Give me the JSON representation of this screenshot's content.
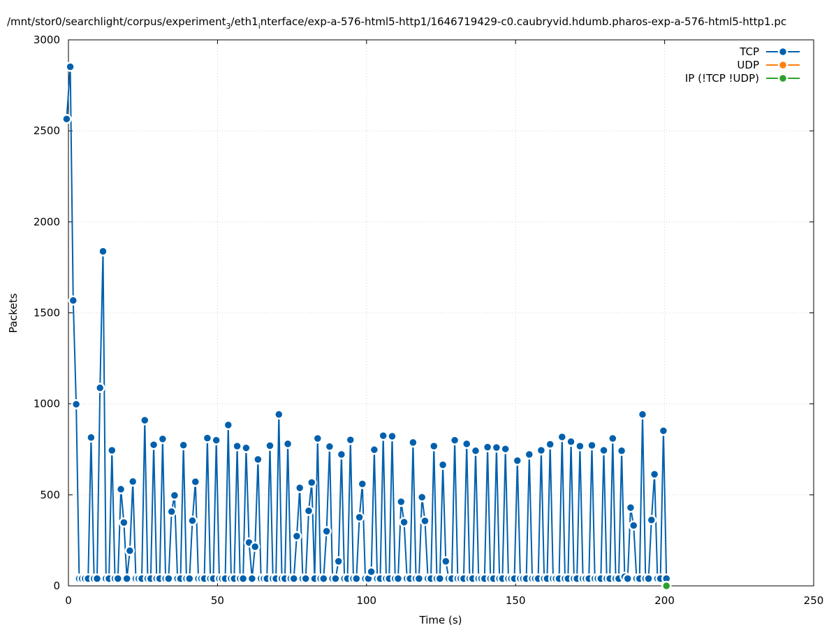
{
  "title": {
    "main": "/mnt/stor0/searchlight/corpus/experiment",
    "sub1": "3",
    "mid": "/eth1",
    "sub2": "i",
    "rest": "nterface/exp-a-576-html5-http1/1646719429-c0.caubryvid.hdumb.pharos-exp-a-576-html5-http1.pc"
  },
  "chart_data": {
    "type": "line",
    "xlabel": "Time (s)",
    "ylabel": "Packets",
    "xlim": [
      0,
      250
    ],
    "ylim": [
      0,
      3000
    ],
    "xticks": [
      0,
      50,
      100,
      150,
      200,
      250
    ],
    "yticks": [
      0,
      500,
      1000,
      1500,
      2000,
      2500,
      3000
    ],
    "grid": true,
    "legend_position": "top-right",
    "colors": {
      "tcp": "#0060ad",
      "udp": "#ff7f0e",
      "ip": "#2ca02c"
    },
    "series": [
      {
        "name": "TCP",
        "color": "#0060ad",
        "points": [
          [
            -0.6,
            2565
          ],
          [
            0.6,
            2852
          ],
          [
            1.6,
            1568
          ],
          [
            2.6,
            998
          ],
          [
            3.6,
            40
          ],
          [
            4.6,
            40
          ],
          [
            5.6,
            40
          ],
          [
            6.6,
            40
          ],
          [
            7.6,
            815
          ],
          [
            8.6,
            40
          ],
          [
            9.6,
            40
          ],
          [
            10.6,
            1088
          ],
          [
            11.6,
            1838
          ],
          [
            12.6,
            40
          ],
          [
            13.6,
            40
          ],
          [
            14.6,
            745
          ],
          [
            15.6,
            40
          ],
          [
            16.6,
            40
          ],
          [
            17.6,
            531
          ],
          [
            18.6,
            348
          ],
          [
            19.6,
            40
          ],
          [
            20.6,
            193
          ],
          [
            21.6,
            573
          ],
          [
            22.6,
            40
          ],
          [
            23.6,
            40
          ],
          [
            24.6,
            40
          ],
          [
            25.6,
            910
          ],
          [
            26.6,
            40
          ],
          [
            27.6,
            40
          ],
          [
            28.6,
            775
          ],
          [
            29.6,
            40
          ],
          [
            30.6,
            40
          ],
          [
            31.6,
            807
          ],
          [
            32.6,
            40
          ],
          [
            33.6,
            40
          ],
          [
            34.6,
            408
          ],
          [
            35.6,
            497
          ],
          [
            36.6,
            40
          ],
          [
            37.6,
            40
          ],
          [
            38.6,
            773
          ],
          [
            39.6,
            40
          ],
          [
            40.6,
            40
          ],
          [
            41.6,
            358
          ],
          [
            42.6,
            572
          ],
          [
            43.6,
            40
          ],
          [
            44.6,
            40
          ],
          [
            45.6,
            40
          ],
          [
            46.6,
            812
          ],
          [
            47.6,
            40
          ],
          [
            48.6,
            40
          ],
          [
            49.6,
            800
          ],
          [
            50.6,
            40
          ],
          [
            51.6,
            40
          ],
          [
            52.6,
            40
          ],
          [
            53.6,
            884
          ],
          [
            54.6,
            40
          ],
          [
            55.6,
            40
          ],
          [
            56.6,
            768
          ],
          [
            57.6,
            40
          ],
          [
            58.6,
            40
          ],
          [
            59.6,
            758
          ],
          [
            60.6,
            238
          ],
          [
            61.6,
            40
          ],
          [
            62.6,
            215
          ],
          [
            63.6,
            695
          ],
          [
            64.6,
            40
          ],
          [
            65.6,
            40
          ],
          [
            66.6,
            40
          ],
          [
            67.6,
            770
          ],
          [
            68.6,
            40
          ],
          [
            69.6,
            40
          ],
          [
            70.6,
            942
          ],
          [
            71.6,
            40
          ],
          [
            72.6,
            40
          ],
          [
            73.6,
            780
          ],
          [
            74.6,
            40
          ],
          [
            75.6,
            40
          ],
          [
            76.6,
            273
          ],
          [
            77.6,
            538
          ],
          [
            78.6,
            40
          ],
          [
            79.6,
            40
          ],
          [
            80.6,
            412
          ],
          [
            81.6,
            568
          ],
          [
            82.6,
            40
          ],
          [
            83.6,
            810
          ],
          [
            84.6,
            40
          ],
          [
            85.6,
            40
          ],
          [
            86.6,
            300
          ],
          [
            87.6,
            765
          ],
          [
            88.6,
            40
          ],
          [
            89.6,
            40
          ],
          [
            90.6,
            135
          ],
          [
            91.6,
            722
          ],
          [
            92.6,
            40
          ],
          [
            93.6,
            40
          ],
          [
            94.6,
            802
          ],
          [
            95.6,
            40
          ],
          [
            96.6,
            40
          ],
          [
            97.6,
            377
          ],
          [
            98.6,
            560
          ],
          [
            99.6,
            40
          ],
          [
            100.6,
            40
          ],
          [
            101.6,
            78
          ],
          [
            102.6,
            748
          ],
          [
            103.6,
            40
          ],
          [
            104.6,
            40
          ],
          [
            105.6,
            825
          ],
          [
            106.6,
            40
          ],
          [
            107.6,
            40
          ],
          [
            108.6,
            822
          ],
          [
            109.6,
            40
          ],
          [
            110.6,
            40
          ],
          [
            111.6,
            462
          ],
          [
            112.6,
            350
          ],
          [
            113.6,
            40
          ],
          [
            114.6,
            40
          ],
          [
            115.6,
            788
          ],
          [
            116.6,
            40
          ],
          [
            117.6,
            40
          ],
          [
            118.6,
            487
          ],
          [
            119.6,
            357
          ],
          [
            120.6,
            40
          ],
          [
            121.6,
            40
          ],
          [
            122.6,
            768
          ],
          [
            123.6,
            40
          ],
          [
            124.6,
            40
          ],
          [
            125.6,
            665
          ],
          [
            126.6,
            135
          ],
          [
            127.6,
            40
          ],
          [
            128.6,
            40
          ],
          [
            129.6,
            800
          ],
          [
            130.6,
            40
          ],
          [
            131.6,
            40
          ],
          [
            132.6,
            40
          ],
          [
            133.6,
            780
          ],
          [
            134.6,
            40
          ],
          [
            135.6,
            40
          ],
          [
            136.6,
            742
          ],
          [
            137.6,
            40
          ],
          [
            138.6,
            40
          ],
          [
            139.6,
            40
          ],
          [
            140.6,
            762
          ],
          [
            141.6,
            40
          ],
          [
            142.6,
            40
          ],
          [
            143.6,
            760
          ],
          [
            144.6,
            40
          ],
          [
            145.6,
            40
          ],
          [
            146.6,
            752
          ],
          [
            147.6,
            40
          ],
          [
            148.6,
            40
          ],
          [
            149.6,
            40
          ],
          [
            150.6,
            688
          ],
          [
            151.6,
            40
          ],
          [
            152.6,
            40
          ],
          [
            153.6,
            40
          ],
          [
            154.6,
            722
          ],
          [
            155.6,
            40
          ],
          [
            156.6,
            40
          ],
          [
            157.6,
            40
          ],
          [
            158.6,
            745
          ],
          [
            159.6,
            40
          ],
          [
            160.6,
            40
          ],
          [
            161.6,
            778
          ],
          [
            162.6,
            40
          ],
          [
            163.6,
            40
          ],
          [
            164.6,
            40
          ],
          [
            165.6,
            818
          ],
          [
            166.6,
            40
          ],
          [
            167.6,
            40
          ],
          [
            168.6,
            792
          ],
          [
            169.6,
            40
          ],
          [
            170.6,
            40
          ],
          [
            171.6,
            768
          ],
          [
            172.6,
            40
          ],
          [
            173.6,
            40
          ],
          [
            174.6,
            40
          ],
          [
            175.6,
            772
          ],
          [
            176.6,
            40
          ],
          [
            177.6,
            40
          ],
          [
            178.6,
            40
          ],
          [
            179.6,
            745
          ],
          [
            180.6,
            40
          ],
          [
            181.6,
            40
          ],
          [
            182.6,
            810
          ],
          [
            183.6,
            40
          ],
          [
            184.6,
            40
          ],
          [
            185.6,
            742
          ],
          [
            186.6,
            50
          ],
          [
            187.6,
            40
          ],
          [
            188.6,
            430
          ],
          [
            189.6,
            332
          ],
          [
            190.6,
            40
          ],
          [
            191.6,
            40
          ],
          [
            192.6,
            942
          ],
          [
            193.6,
            40
          ],
          [
            194.6,
            40
          ],
          [
            195.6,
            362
          ],
          [
            196.6,
            613
          ],
          [
            197.6,
            40
          ],
          [
            198.6,
            40
          ],
          [
            199.6,
            852
          ],
          [
            200.6,
            40
          ]
        ]
      },
      {
        "name": "UDP",
        "color": "#ff7f0e",
        "points": []
      },
      {
        "name": "IP (!TCP  !UDP)",
        "color": "#2ca02c",
        "points": [
          [
            200.6,
            0
          ]
        ]
      }
    ]
  }
}
